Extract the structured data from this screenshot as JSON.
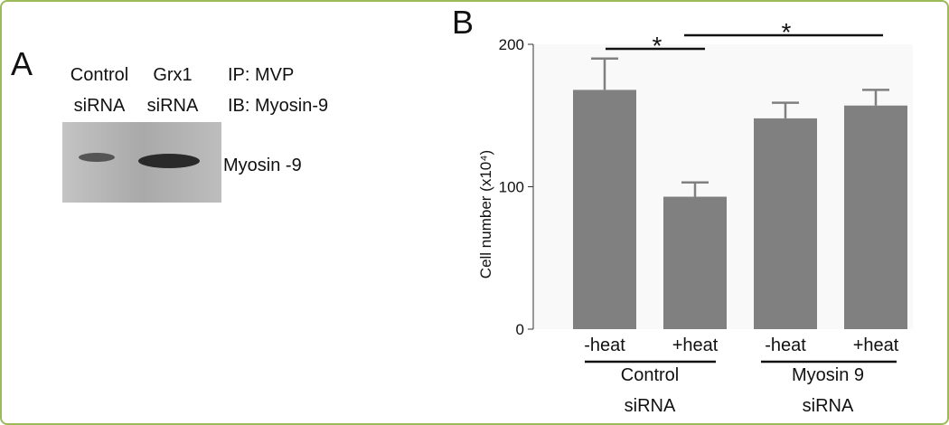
{
  "panel_a": {
    "label": "A",
    "lanes": [
      "Control siRNA",
      "Grx1 siRNA"
    ],
    "ip": "IP: MVP",
    "ib": "IB: Myosin-9",
    "band_label": "Myosin -9"
  },
  "chart_data": {
    "type": "bar",
    "panel_label": "B",
    "y_label": "Cell number (x10⁴)",
    "categories": [
      "-heat",
      "+heat",
      "-heat",
      "+heat"
    ],
    "values": [
      168,
      93,
      148,
      157
    ],
    "errors": [
      22,
      10,
      11,
      11
    ],
    "color": "#808080",
    "groups": [
      "Control siRNA",
      "Myosin 9 siRNA"
    ],
    "annotations": [
      "*",
      "*"
    ],
    "ylim": [
      0,
      200
    ],
    "yticks": [
      0,
      100,
      200
    ]
  }
}
